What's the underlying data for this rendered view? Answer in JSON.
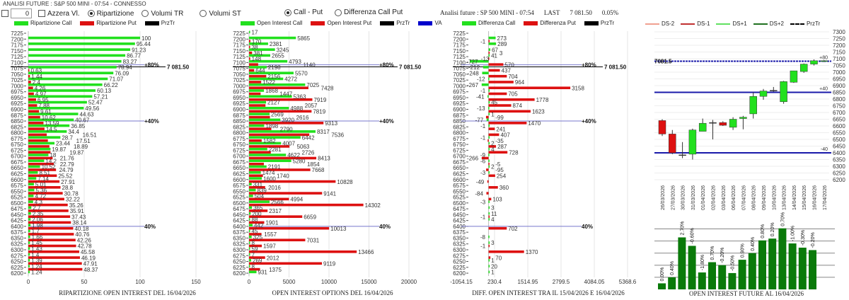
{
  "app_title": "ANALISI FUTURE : S&P 500 MINI - 07:54 - CONNESSO",
  "controls": {
    "number_value": "0",
    "azzera_label": "Azzera Vl.",
    "radio_ripartizione": "Ripartizione",
    "radio_volumi_tr": "Volumi TR",
    "radio_volumi_st": "Volumi ST",
    "selected": "Ripartizione",
    "radio_call_put": "Call - Put",
    "radio_diff_call_put": "Differenza Call Put",
    "selected2": "Call - Put"
  },
  "header": {
    "title": "Analisi future : SP 500 MINI - 07:54",
    "last_label": "LAST",
    "last_value": "7 081.50",
    "change": "0.05%"
  },
  "colors": {
    "call": "#22e01e",
    "put": "#dd1111",
    "prztr": "#000000",
    "va": "#0000cc",
    "level_line": "#7777cc",
    "candle_up": "#22e01e",
    "candle_down": "#dd1111",
    "oi_bar": "#0a7a0a",
    "sr_line": "#1a1aaa"
  },
  "markers": {
    "price_label": "7 081.50",
    "pct80": "+80%",
    "pct40": "+40%",
    "pct40b": "40%"
  },
  "chart_data": [
    {
      "type": "bar",
      "orientation": "horizontal",
      "title": "RIPARTIZIONE OPEN INTEREST DEL 16/04/2026",
      "legend": [
        "Ripartizione Call",
        "Ripartizione Put",
        "PrzTr"
      ],
      "xticks": [
        "0",
        "50",
        "100",
        "150"
      ],
      "xlim": [
        0,
        150
      ],
      "strikes": [
        7225,
        7200,
        7175,
        7150,
        7125,
        7100,
        7075,
        7050,
        7025,
        7000,
        6975,
        6950,
        6925,
        6900,
        6875,
        6850,
        6825,
        6800,
        6775,
        6750,
        6725,
        6700,
        6675,
        6650,
        6625,
        6600,
        6575,
        6550,
        6525,
        6500,
        6475,
        6450,
        6425,
        6400,
        6375,
        6350,
        6325,
        6300,
        6275,
        6250,
        6225,
        6200
      ],
      "series": [
        {
          "name": "Ripartizione Call",
          "values": [
            null,
            100,
            95.44,
            91.23,
            86.77,
            83.27,
            78.94,
            76.09,
            71.07,
            66.22,
            60.13,
            57.21,
            52.47,
            49.56,
            44.63,
            40.67,
            36.85,
            34.4,
            28.7,
            23.44,
            19.87,
            18,
            14.2,
            10.52,
            8.51,
            7.14,
            5.01,
            5.36,
            4.72,
            4.3,
            2.7,
            2.35,
            2.06,
            1.98,
            1.7,
            1.66,
            1.45,
            1.43,
            1.4,
            1.39,
            1.24,
            1.24
          ]
        },
        {
          "name": "Ripartizione Put",
          "values": [
            null,
            null,
            null,
            null,
            null,
            null,
            0.63,
            1.44,
            2.4,
            4.26,
            4.97,
            6.95,
            7.88,
            9.61,
            10.62,
            13.59,
            14.5,
            16.51,
            17.51,
            18.89,
            19.87,
            21.76,
            22.79,
            24.79,
            25.52,
            27.91,
            28.8,
            30.78,
            32.22,
            35.26,
            35.91,
            37.43,
            38.14,
            40.18,
            40.76,
            42.26,
            42.78,
            45.58,
            46.19,
            47.91,
            48.37,
            null
          ]
        }
      ],
      "price": 7081.5,
      "levels": [
        {
          "strike": 7090,
          "label": "+80%"
        },
        {
          "strike": 6850,
          "label": "+40%"
        },
        {
          "strike": 6400,
          "label": "40%"
        }
      ]
    },
    {
      "type": "bar",
      "orientation": "horizontal",
      "title": "OPEN INTEREST OPTIONS DEL 16/04/2026",
      "legend": [
        "Open Interest Call",
        "Open Interest Put",
        "PrzTr",
        "VA"
      ],
      "xticks": [
        "0",
        "5000",
        "10000",
        "15000",
        "20000"
      ],
      "xlim": [
        0,
        20000
      ],
      "series": [
        {
          "name": "Open Interest Call",
          "values": [
            17,
            5865,
            2381,
            3245,
            2655,
            4793,
            2198,
            5570,
            4272,
            7025,
            1868,
            5363,
            2127,
            4988,
            2569,
            3920,
            1898,
            8317,
            6442,
            4007,
            2281,
            4622,
            5280,
            2191,
            1474,
            1600,
            331,
            839,
            504,
            2566,
            365,
            200,
            88,
            442,
            45,
            325,
            8,
            59,
            7,
            269,
            8,
            931
          ]
        },
        {
          "name": "Open Interest Put",
          "values": [
            null,
            170,
            38,
            381,
            148,
            1140,
            644,
            2156,
            1522,
            7428,
            1447,
            7919,
            2057,
            7819,
            2616,
            9313,
            2790,
            7536,
            1582,
            5063,
            2726,
            8413,
            1854,
            7668,
            1740,
            10828,
            2016,
            9141,
            4994,
            14302,
            2317,
            6659,
            1901,
            10013,
            1557,
            7031,
            1597,
            13466,
            2012,
            9119,
            1375,
            null
          ]
        }
      ],
      "price": 7081.5,
      "levels": [
        {
          "strike": 7090,
          "label": "+80%"
        },
        {
          "strike": 6850,
          "label": "+40%"
        },
        {
          "strike": 6400,
          "label": "40%"
        }
      ]
    },
    {
      "type": "bar",
      "orientation": "horizontal",
      "title": "DIFF. OPEN INTEREST TRA IL 15/04/2026 E 16/04/2026",
      "legend": [
        "Differenza Call",
        "Differenza Put",
        "PrzTr"
      ],
      "xticks": [
        "-1054.15",
        "230.4",
        "1514.95",
        "2799.5",
        "4084.05",
        "5368.6"
      ],
      "xlim": [
        -1054.15,
        5368.6
      ],
      "series": [
        {
          "name": "Differenza Call",
          "values": [
            null,
            273,
            289,
            67,
            41,
            -727,
            -212,
            -248,
            -12,
            -267,
            -1,
            -41,
            45,
            -13,
            1,
            -77,
            -1,
            null,
            -1,
            2,
            4,
            -9,
            -6,
            2,
            -3,
            null,
            null,
            null,
            null,
            -3,
            3,
            11,
            4,
            null,
            null,
            -8,
            3,
            null,
            null,
            1,
            20,
            1
          ]
        },
        {
          "name": "Differenza Put",
          "values": [
            null,
            -1,
            null,
            3,
            -13,
            570,
            437,
            704,
            964,
            3158,
            705,
            1778,
            874,
            1623,
            -99,
            1470,
            241,
            407,
            -35,
            287,
            728,
            -266,
            -5,
            -95,
            254,
            -49,
            360,
            -84,
            103,
            null,
            null,
            -1,
            null,
            702,
            null,
            null,
            -1,
            1370,
            70,
            null,
            null,
            null
          ]
        }
      ],
      "price": 7081.5,
      "levels": [
        {
          "strike": 7090,
          "label": "+80%"
        },
        {
          "strike": 6850,
          "label": "+40%"
        },
        {
          "strike": 6400,
          "label": "40%"
        }
      ]
    },
    {
      "type": "candlestick",
      "legend": [
        "DS-2",
        "DS-1",
        "DS+1",
        "DS+2",
        "PrzTr"
      ],
      "yticks": [
        7300,
        7250,
        7200,
        7150,
        7100,
        7050,
        7000,
        6950,
        6900,
        6850,
        6800,
        6750,
        6700,
        6650,
        6600,
        6550,
        6500,
        6450,
        6400,
        6350,
        6300,
        6250,
        6200
      ],
      "ylim": [
        6200,
        7300
      ],
      "dates": [
        "26/03/2026",
        "27/03/2026",
        "30/03/2026",
        "31/03/2026",
        "01/04/2026",
        "02/04/2026",
        "03/04/2026",
        "06/04/2026",
        "07/04/2026",
        "08/04/2026",
        "09/04/2026",
        "10/04/2026",
        "13/04/2026",
        "14/04/2026",
        "15/04/2026",
        "16/04/2026",
        "17/04/2026"
      ],
      "ohlc": [
        [
          6640,
          6650,
          6525,
          6540
        ],
        [
          6540,
          6570,
          6390,
          6400
        ],
        [
          6385,
          6480,
          6360,
          6385
        ],
        [
          6390,
          6580,
          6350,
          6570
        ],
        [
          6560,
          6655,
          6560,
          6620
        ],
        [
          6625,
          6645,
          6500,
          6625
        ],
        [
          6625,
          6635,
          6600,
          6605
        ],
        [
          6590,
          6665,
          6570,
          6650
        ],
        [
          6655,
          6675,
          6575,
          6665
        ],
        [
          6690,
          6850,
          6655,
          6820
        ],
        [
          6820,
          6875,
          6795,
          6860
        ],
        [
          6865,
          6890,
          6855,
          6865
        ],
        [
          6780,
          6935,
          6765,
          6930
        ],
        [
          6925,
          7010,
          6920,
          7010
        ],
        [
          7005,
          7065,
          6995,
          7060
        ],
        [
          7060,
          7095,
          7050,
          7085
        ],
        [
          7080,
          7090,
          7075,
          7085
        ]
      ],
      "price_label": "7081.5",
      "price": 7081.5,
      "hlines": [
        {
          "value": 6850,
          "label": "+40"
        },
        {
          "value": 6400,
          "label": "-40"
        }
      ],
      "top_label": "+80"
    },
    {
      "type": "bar",
      "title": "OPEN INTEREST FUTURE AL 16/04/2026",
      "values": [
        10,
        20,
        86,
        72,
        28,
        45,
        40,
        27,
        49,
        60,
        81,
        84,
        101,
        76,
        69,
        65
      ],
      "labels": [
        "0.00%",
        "0.40%",
        "2.70%",
        "-0.60%",
        "-1.80%",
        "0.70%",
        "-0.20%",
        "-0.50%",
        "0.90%",
        "0.40%",
        "0.80%",
        "0.20%",
        "0.70%",
        "-1.00%",
        "-0.30%",
        "-0.20%"
      ],
      "ylim": [
        0,
        110
      ],
      "grid": true
    }
  ]
}
